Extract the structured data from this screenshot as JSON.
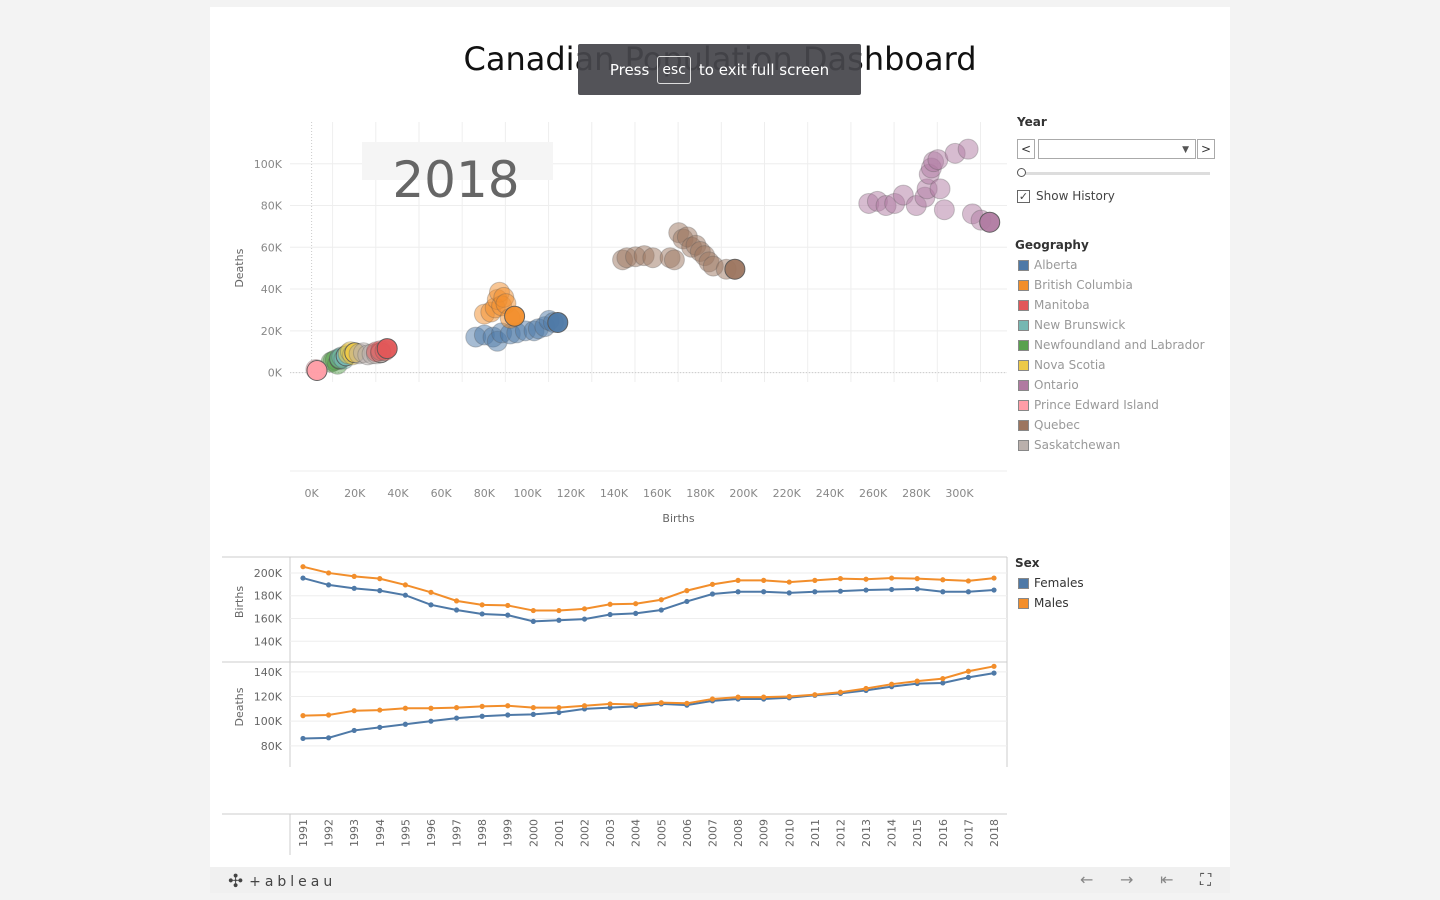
{
  "title": "Canadian Population Dashboard",
  "toast": {
    "press": "Press",
    "key": "esc",
    "rest": "to exit full screen"
  },
  "year_control": {
    "label": "Year",
    "show_history": "Show History",
    "prev": "<",
    "next": ">"
  },
  "geography_legend": {
    "title": "Geography",
    "items": [
      {
        "label": "Alberta",
        "color": "#4e79a7"
      },
      {
        "label": "British Columbia",
        "color": "#f28e2b"
      },
      {
        "label": "Manitoba",
        "color": "#e15759"
      },
      {
        "label": "New Brunswick",
        "color": "#76b7b2"
      },
      {
        "label": "Newfoundland and Labrador",
        "color": "#59a14f"
      },
      {
        "label": "Nova Scotia",
        "color": "#edc948"
      },
      {
        "label": "Ontario",
        "color": "#b07aa1"
      },
      {
        "label": "Prince Edward Island",
        "color": "#ff9da7"
      },
      {
        "label": "Quebec",
        "color": "#9c755f"
      },
      {
        "label": "Saskatchewan",
        "color": "#bab0ac"
      }
    ]
  },
  "sex_legend": {
    "title": "Sex",
    "items": [
      {
        "label": "Females",
        "color": "#4e79a7"
      },
      {
        "label": "Males",
        "color": "#f28e2b"
      }
    ]
  },
  "footer": {
    "logo": "+ableau"
  },
  "chart_data": [
    {
      "type": "scatter",
      "year_label": "2018",
      "xlabel": "Births",
      "ylabel": "Deaths",
      "xlim": [
        -10000,
        322000
      ],
      "ylim": [
        -50000,
        120000
      ],
      "x_ticks": [
        0,
        20000,
        40000,
        60000,
        80000,
        100000,
        120000,
        140000,
        160000,
        180000,
        200000,
        220000,
        240000,
        260000,
        280000,
        300000
      ],
      "x_tick_labels": [
        "0K",
        "20K",
        "40K",
        "60K",
        "80K",
        "100K",
        "120K",
        "140K",
        "160K",
        "180K",
        "200K",
        "220K",
        "240K",
        "260K",
        "280K",
        "300K"
      ],
      "y_ticks": [
        0,
        20000,
        40000,
        60000,
        80000,
        100000
      ],
      "y_tick_labels": [
        "0K",
        "20K",
        "40K",
        "60K",
        "80K",
        "100K"
      ],
      "series": [
        {
          "name": "Newfoundland and Labrador",
          "color": "#59a14f",
          "points": [
            [
              9000,
              5000
            ],
            [
              10000,
              5500
            ],
            [
              11000,
              6000
            ],
            [
              12000,
              4000
            ],
            [
              13000,
              6500
            ]
          ]
        },
        {
          "name": "New Brunswick",
          "color": "#76b7b2",
          "points": [
            [
              13000,
              7000
            ],
            [
              14000,
              7500
            ],
            [
              15000,
              6500
            ],
            [
              16000,
              8000
            ]
          ]
        },
        {
          "name": "Nova Scotia",
          "color": "#edc948",
          "points": [
            [
              17000,
              9000
            ],
            [
              18000,
              10000
            ],
            [
              19000,
              8500
            ],
            [
              20000,
              9500
            ]
          ]
        },
        {
          "name": "Saskatchewan",
          "color": "#bab0ac",
          "points": [
            [
              22000,
              9000
            ],
            [
              24000,
              9500
            ],
            [
              26000,
              8500
            ],
            [
              28000,
              9000
            ],
            [
              30000,
              9000
            ],
            [
              32000,
              9500
            ]
          ]
        },
        {
          "name": "Manitoba",
          "color": "#e15759",
          "points": [
            [
              30000,
              10000
            ],
            [
              32000,
              10500
            ],
            [
              34000,
              10500
            ],
            [
              35000,
              11500
            ]
          ]
        },
        {
          "name": "Prince Edward Island",
          "color": "#ff9da7",
          "points": [
            [
              2000,
              1500
            ],
            [
              2500,
              1000
            ]
          ]
        },
        {
          "name": "Alberta",
          "color": "#4e79a7",
          "points": [
            [
              76000,
              17000
            ],
            [
              80000,
              18000
            ],
            [
              84000,
              17000
            ],
            [
              86000,
              15000
            ],
            [
              88000,
              19000
            ],
            [
              92000,
              18500
            ],
            [
              95000,
              19000
            ],
            [
              99000,
              20000
            ],
            [
              103000,
              20000
            ],
            [
              105000,
              21000
            ],
            [
              108000,
              22000
            ],
            [
              110000,
              25000
            ],
            [
              112000,
              24000
            ],
            [
              114000,
              24000
            ]
          ]
        },
        {
          "name": "British Columbia",
          "color": "#f28e2b",
          "points": [
            [
              80000,
              28000
            ],
            [
              83000,
              29000
            ],
            [
              85000,
              31000
            ],
            [
              86000,
              35000
            ],
            [
              87000,
              38500
            ],
            [
              88000,
              32000
            ],
            [
              89000,
              36000
            ],
            [
              90000,
              33000
            ],
            [
              92000,
              26000
            ],
            [
              94000,
              27000
            ]
          ]
        },
        {
          "name": "Quebec",
          "color": "#9c755f",
          "points": [
            [
              144000,
              54000
            ],
            [
              146000,
              55000
            ],
            [
              150000,
              55500
            ],
            [
              154000,
              56000
            ],
            [
              158000,
              55000
            ],
            [
              166000,
              55000
            ],
            [
              168000,
              54000
            ],
            [
              170000,
              67000
            ],
            [
              172000,
              64000
            ],
            [
              174000,
              65000
            ],
            [
              176000,
              60000
            ],
            [
              178000,
              61000
            ],
            [
              180000,
              58000
            ],
            [
              182000,
              56000
            ],
            [
              184000,
              53000
            ],
            [
              186000,
              51000
            ],
            [
              192000,
              49500
            ],
            [
              196000,
              49500
            ]
          ]
        },
        {
          "name": "Ontario",
          "color": "#b07aa1",
          "points": [
            [
              258000,
              81000
            ],
            [
              262000,
              82000
            ],
            [
              266000,
              80000
            ],
            [
              270000,
              81000
            ],
            [
              274000,
              85000
            ],
            [
              280000,
              80000
            ],
            [
              284000,
              84000
            ],
            [
              285000,
              88000
            ],
            [
              286000,
              95000
            ],
            [
              287000,
              98000
            ],
            [
              288000,
              101000
            ],
            [
              290000,
              102000
            ],
            [
              291000,
              88000
            ],
            [
              293000,
              78000
            ],
            [
              298000,
              105000
            ],
            [
              304000,
              107000
            ],
            [
              306000,
              76000
            ],
            [
              310000,
              73000
            ],
            [
              314000,
              72000
            ]
          ]
        }
      ]
    },
    {
      "type": "line",
      "ylabel": "Births",
      "categories": [
        "1991",
        "1992",
        "1993",
        "1994",
        "1995",
        "1996",
        "1997",
        "1998",
        "1999",
        "2000",
        "2001",
        "2002",
        "2003",
        "2004",
        "2005",
        "2006",
        "2007",
        "2008",
        "2009",
        "2010",
        "2011",
        "2012",
        "2013",
        "2014",
        "2015",
        "2016",
        "2017",
        "2018"
      ],
      "ylim": [
        135000,
        214000
      ],
      "y_ticks": [
        140000,
        160000,
        180000,
        200000
      ],
      "y_tick_labels": [
        "140K",
        "160K",
        "180K",
        "200K"
      ],
      "series": [
        {
          "name": "Females",
          "color": "#4e79a7",
          "values": [
            195500,
            189500,
            186500,
            184500,
            180500,
            172000,
            167500,
            164000,
            163000,
            157500,
            158500,
            159500,
            163500,
            164500,
            167500,
            175000,
            181500,
            183500,
            183500,
            182500,
            183500,
            184000,
            185000,
            185500,
            186000,
            183500,
            183500,
            185000
          ]
        },
        {
          "name": "Males",
          "color": "#f28e2b",
          "values": [
            205500,
            200000,
            197000,
            195000,
            189500,
            183000,
            175500,
            172000,
            171500,
            167000,
            167000,
            168500,
            172500,
            173000,
            176500,
            184500,
            190000,
            193500,
            193500,
            192000,
            193500,
            195000,
            194500,
            195500,
            195000,
            194000,
            193000,
            195500
          ]
        }
      ]
    },
    {
      "type": "line",
      "ylabel": "Deaths",
      "categories": [
        "1991",
        "1992",
        "1993",
        "1994",
        "1995",
        "1996",
        "1997",
        "1998",
        "1999",
        "2000",
        "2001",
        "2002",
        "2003",
        "2004",
        "2005",
        "2006",
        "2007",
        "2008",
        "2009",
        "2010",
        "2011",
        "2012",
        "2013",
        "2014",
        "2015",
        "2016",
        "2017",
        "2018"
      ],
      "ylim": [
        75000,
        148000
      ],
      "y_ticks": [
        80000,
        100000,
        120000,
        140000
      ],
      "y_tick_labels": [
        "80K",
        "100K",
        "120K",
        "140K"
      ],
      "series": [
        {
          "name": "Females",
          "color": "#4e79a7",
          "values": [
            86000,
            86500,
            92500,
            95000,
            97500,
            100000,
            102500,
            104000,
            105000,
            105500,
            107000,
            110000,
            111000,
            112000,
            114000,
            113000,
            116500,
            118000,
            118000,
            119000,
            121000,
            122500,
            125000,
            128000,
            130500,
            131000,
            135500,
            139000
          ]
        },
        {
          "name": "Males",
          "color": "#f28e2b",
          "values": [
            104500,
            105000,
            108500,
            109000,
            110500,
            110500,
            111000,
            112000,
            112500,
            111000,
            111000,
            112500,
            114000,
            113500,
            115000,
            114500,
            118000,
            119500,
            119500,
            120000,
            121500,
            123500,
            126500,
            130000,
            132500,
            134500,
            140500,
            144500
          ]
        }
      ]
    }
  ]
}
